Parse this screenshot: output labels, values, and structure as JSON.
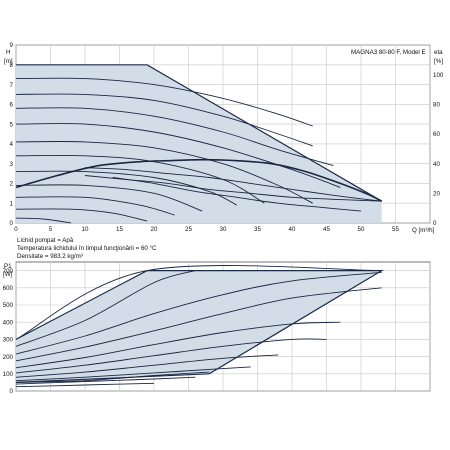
{
  "chart_data": [
    {
      "type": "line",
      "title": "MAGNA3 80-80 F, Model E",
      "ylabel": "H",
      "yunit": "[m]",
      "y2label": "eta",
      "y2unit": "[%]",
      "xlabel": "Q [m³/h]",
      "xlim": [
        0,
        60
      ],
      "ylim": [
        0,
        9
      ],
      "y2lim": [
        0,
        120
      ],
      "grid": true,
      "xticks": [
        "0",
        "5",
        "10",
        "15",
        "20",
        "25",
        "30",
        "35",
        "40",
        "45",
        "50",
        "55"
      ],
      "yticks": [
        "0",
        "1",
        "2",
        "3",
        "4",
        "5",
        "6",
        "7",
        "8",
        "9"
      ],
      "y2ticks": [
        "0",
        "20",
        "40",
        "60",
        "80",
        "100"
      ],
      "envelope": {
        "x": [
          0,
          19,
          53
        ],
        "y": [
          8.0,
          8.0,
          1.1
        ]
      },
      "series": [
        {
          "x": [
            0,
            6,
            12,
            18,
            22,
            27,
            32,
            37,
            42,
            47,
            51,
            53
          ],
          "y": [
            1.8,
            2.4,
            2.9,
            3.1,
            3.15,
            3.2,
            3.15,
            3.0,
            2.6,
            2.0,
            1.45,
            1.1
          ]
        },
        {
          "x": [
            0,
            10,
            20,
            30,
            38,
            43
          ],
          "y": [
            7.3,
            7.3,
            7.0,
            6.3,
            5.5,
            4.9
          ]
        },
        {
          "x": [
            0,
            10,
            20,
            30,
            38,
            43
          ],
          "y": [
            6.5,
            6.5,
            6.2,
            5.4,
            4.5,
            3.9
          ]
        },
        {
          "x": [
            0,
            10,
            20,
            30,
            38,
            46
          ],
          "y": [
            5.8,
            5.8,
            5.4,
            4.6,
            3.7,
            2.9
          ]
        },
        {
          "x": [
            0,
            10,
            20,
            30,
            40,
            47
          ],
          "y": [
            5.0,
            5.0,
            4.6,
            3.8,
            2.7,
            1.8
          ]
        },
        {
          "x": [
            0,
            10,
            20,
            30,
            38,
            43
          ],
          "y": [
            4.1,
            4.1,
            3.8,
            3.0,
            1.9,
            1.0
          ]
        },
        {
          "x": [
            0,
            10,
            20,
            30,
            36
          ],
          "y": [
            3.4,
            3.4,
            3.1,
            2.2,
            1.0
          ]
        },
        {
          "x": [
            0,
            10,
            20,
            28,
            32
          ],
          "y": [
            2.6,
            2.6,
            2.3,
            1.6,
            0.9
          ]
        },
        {
          "x": [
            0,
            10,
            20,
            27
          ],
          "y": [
            1.9,
            1.9,
            1.5,
            0.6
          ]
        },
        {
          "x": [
            0,
            10,
            18,
            23
          ],
          "y": [
            1.3,
            1.3,
            0.9,
            0.4
          ]
        },
        {
          "x": [
            0,
            8,
            14,
            19
          ],
          "y": [
            0.7,
            0.7,
            0.5,
            0.1
          ]
        },
        {
          "x": [
            0,
            4,
            8
          ],
          "y": [
            0.25,
            0.2,
            0.0
          ]
        },
        {
          "x": [
            10,
            16,
            22,
            28,
            34,
            40,
            46,
            53
          ],
          "y": [
            2.8,
            2.7,
            2.5,
            2.3,
            2.0,
            1.7,
            1.4,
            1.1
          ]
        },
        {
          "x": [
            10,
            16,
            22,
            28,
            34,
            40,
            46,
            53
          ],
          "y": [
            2.4,
            2.2,
            2.0,
            1.7,
            1.5,
            1.3,
            1.2,
            1.1
          ]
        },
        {
          "x": [
            14,
            20,
            26,
            32,
            38,
            44,
            50
          ],
          "y": [
            2.3,
            2.0,
            1.6,
            1.3,
            1.0,
            0.8,
            0.6
          ]
        }
      ],
      "annotations": [
        "Lichid pompat = Apă",
        "Temperatura lichidului în timpul funcţionării = 60 °C",
        "Densitate = 983.2 kg/m³"
      ]
    },
    {
      "type": "line",
      "ylabel": "P1",
      "yunit": "[W]",
      "xlim": [
        0,
        60
      ],
      "ylim": [
        0,
        750
      ],
      "grid": true,
      "yticks": [
        "0",
        "100",
        "200",
        "300",
        "400",
        "500",
        "600",
        "700"
      ],
      "envelope": {
        "x": [
          0,
          19,
          53,
          28,
          0
        ],
        "y": [
          300,
          700,
          700,
          100,
          50
        ]
      },
      "series": [
        {
          "x": [
            0,
            19,
            53
          ],
          "y": [
            300,
            700,
            700
          ]
        },
        {
          "x": [
            0,
            10,
            20,
            26
          ],
          "y": [
            260,
            410,
            630,
            700
          ]
        },
        {
          "x": [
            0,
            10,
            20,
            30,
            40,
            53
          ],
          "y": [
            215,
            320,
            450,
            560,
            640,
            690
          ]
        },
        {
          "x": [
            0,
            10,
            20,
            30,
            40,
            53
          ],
          "y": [
            175,
            255,
            350,
            450,
            540,
            600
          ]
        },
        {
          "x": [
            0,
            10,
            20,
            30,
            40,
            47
          ],
          "y": [
            135,
            195,
            270,
            340,
            390,
            400
          ]
        },
        {
          "x": [
            0,
            10,
            20,
            30,
            40,
            45
          ],
          "y": [
            105,
            150,
            205,
            260,
            300,
            300
          ]
        },
        {
          "x": [
            0,
            10,
            20,
            30,
            38
          ],
          "y": [
            80,
            110,
            150,
            190,
            210
          ]
        },
        {
          "x": [
            0,
            10,
            20,
            30,
            34
          ],
          "y": [
            60,
            80,
            105,
            130,
            140
          ]
        },
        {
          "x": [
            0,
            10,
            20,
            26
          ],
          "y": [
            40,
            55,
            70,
            80
          ]
        },
        {
          "x": [
            0,
            10,
            20
          ],
          "y": [
            25,
            35,
            45
          ]
        },
        {
          "x": [
            0,
            10,
            20,
            28
          ],
          "y": [
            50,
            60,
            90,
            110
          ]
        }
      ]
    }
  ]
}
